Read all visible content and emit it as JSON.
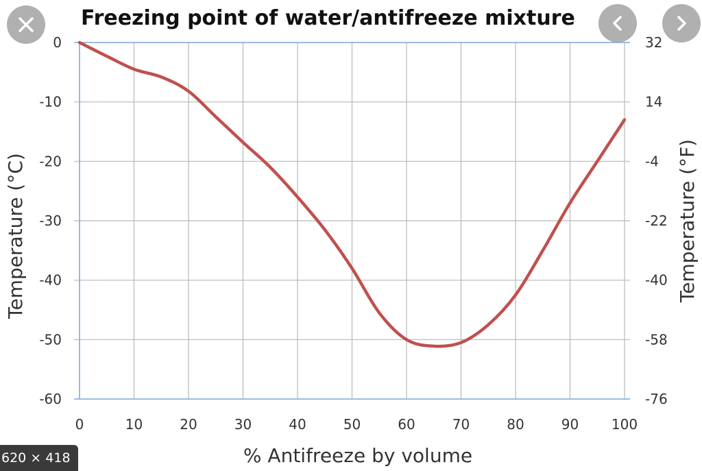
{
  "overlay": {
    "dimensions_label": "620 × 418",
    "icons": [
      "close-icon",
      "chevron-left-icon",
      "chevron-right-icon"
    ]
  },
  "chart_data": {
    "type": "line",
    "title": "Freezing point of water/antifreeze mixture",
    "xlabel": "% Antifreeze by volume",
    "ylabel": "Temperature (°C)",
    "y2label": "Temperature (°F)",
    "xlim": [
      0,
      100
    ],
    "ylim": [
      -60,
      0
    ],
    "x_ticks": [
      "0",
      "10",
      "20",
      "30",
      "40",
      "50",
      "60",
      "70",
      "80",
      "90",
      "100"
    ],
    "y_ticks": [
      "0",
      "-10",
      "-20",
      "-30",
      "-40",
      "-50",
      "-60"
    ],
    "y2_ticks": [
      "32",
      "14",
      "-4",
      "-22",
      "-40",
      "-58",
      "-76"
    ],
    "grid": true,
    "line_color": "#c0504d",
    "series": [
      {
        "x": [
          0,
          5,
          10,
          15,
          20,
          25,
          30,
          35,
          40,
          45,
          50,
          55,
          60,
          65,
          70,
          75,
          80,
          85,
          90,
          95,
          100
        ],
        "y": [
          0,
          -2.3,
          -4.5,
          -5.8,
          -8.2,
          -12.5,
          -16.8,
          -21,
          -26,
          -31.5,
          -38,
          -45.5,
          -50,
          -51.1,
          -50.5,
          -47.5,
          -42.5,
          -35,
          -27,
          -20,
          -13
        ]
      }
    ]
  }
}
